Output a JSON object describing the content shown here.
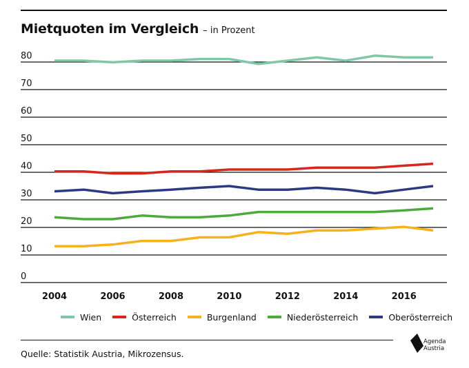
{
  "header": {
    "title": "Mietquoten im Vergleich",
    "subtitle": "– in Prozent"
  },
  "chart_data": {
    "type": "line",
    "title": "Mietquoten im Vergleich",
    "subtitle": "– in Prozent",
    "xlabel": "",
    "ylabel": "",
    "x": [
      2004,
      2005,
      2006,
      2007,
      2008,
      2009,
      2010,
      2011,
      2012,
      2013,
      2014,
      2015,
      2016,
      2017
    ],
    "x_ticks": [
      "2004",
      "2006",
      "2008",
      "2010",
      "2012",
      "2014",
      "2016"
    ],
    "y_ticks": [
      "0",
      "10",
      "20",
      "30",
      "40",
      "50",
      "60",
      "70",
      "80"
    ],
    "xlim": [
      2004,
      2017
    ],
    "ylim": [
      0,
      81
    ],
    "grid": "horizontal",
    "legend_position": "bottom",
    "series": [
      {
        "name": "Wien",
        "color": "#7ec8a5",
        "values": [
          80.5,
          80.5,
          79.9,
          80.5,
          80.5,
          81.1,
          81.1,
          79.3,
          80.5,
          81.7,
          80.5,
          82.3,
          81.7,
          81.7
        ]
      },
      {
        "name": "Österreich",
        "color": "#d9261c",
        "values": [
          40.3,
          40.3,
          39.6,
          39.6,
          40.3,
          40.3,
          41.0,
          41.0,
          41.0,
          41.7,
          41.7,
          41.7,
          42.4,
          43.1
        ]
      },
      {
        "name": "Burgenland",
        "color": "#f5b21b",
        "values": [
          13.2,
          13.2,
          13.8,
          15.1,
          15.1,
          16.4,
          16.4,
          18.3,
          17.7,
          18.9,
          18.9,
          19.6,
          20.2,
          18.9
        ]
      },
      {
        "name": "Niederösterreich",
        "color": "#4bab3a",
        "values": [
          23.7,
          23.0,
          23.0,
          24.3,
          23.7,
          23.7,
          24.3,
          25.6,
          25.6,
          25.6,
          25.6,
          25.6,
          26.2,
          26.9
        ]
      },
      {
        "name": "Oberösterreich",
        "color": "#2b3a83",
        "values": [
          33.1,
          33.7,
          32.4,
          33.1,
          33.7,
          34.4,
          35.0,
          33.7,
          33.7,
          34.4,
          33.7,
          32.4,
          33.7,
          35.0
        ]
      }
    ]
  },
  "footer": {
    "source": "Quelle: Statistik Austria, Mikrozensus.",
    "logo_line1": "Agenda",
    "logo_line2": "Austria"
  }
}
